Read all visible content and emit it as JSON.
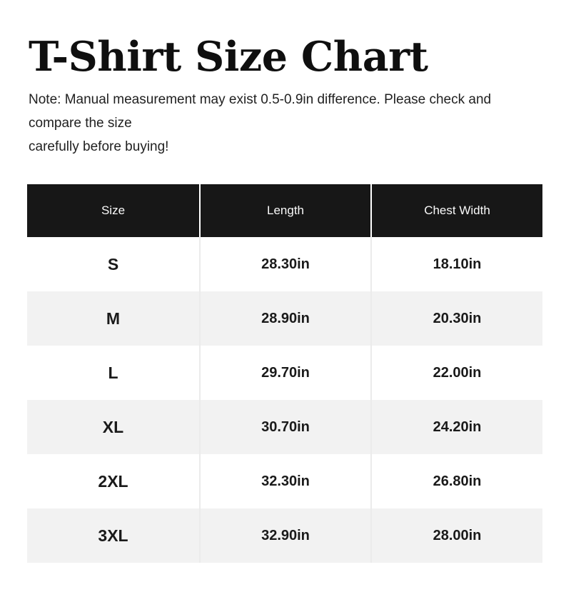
{
  "page": {
    "title": "T-Shirt Size Chart",
    "note": {
      "line1": "Note: Manual measurement may exist 0.5-0.9in difference. Please check and compare the size",
      "line2": "carefully before buying!"
    }
  },
  "table": {
    "headers": [
      "Size",
      "Length",
      "Chest Width"
    ],
    "rows": [
      [
        "S",
        "28.30in",
        "18.10in"
      ],
      [
        "M",
        "28.90in",
        "20.30in"
      ],
      [
        "L",
        "29.70in",
        "22.00in"
      ],
      [
        "XL",
        "30.70in",
        "24.20in"
      ],
      [
        "2XL",
        "32.30in",
        "26.80in"
      ],
      [
        "3XL",
        "32.90in",
        "28.00in"
      ]
    ]
  },
  "chart_data": {
    "type": "table",
    "title": "T-Shirt Size Chart",
    "columns": [
      "Size",
      "Length (in)",
      "Chest Width (in)"
    ],
    "rows": [
      [
        "S",
        28.3,
        18.1
      ],
      [
        "M",
        28.9,
        20.3
      ],
      [
        "L",
        29.7,
        22.0
      ],
      [
        "XL",
        30.7,
        24.2
      ],
      [
        "2XL",
        32.3,
        26.8
      ],
      [
        "3XL",
        32.9,
        28.0
      ]
    ],
    "units": "in",
    "note": "Manual measurement may exist 0.5-0.9in difference."
  },
  "colors": {
    "header_bg": "#171717",
    "header_text": "#fafafa",
    "row_alt_bg": "#f2f2f2",
    "row_bg": "#ffffff",
    "divider": "#ebebeb",
    "header_divider": "#ffffff",
    "text": "#1a1a1a",
    "note_text": "#212121",
    "title_text": "#0f0f0f",
    "page_bg": "#ffffff"
  }
}
